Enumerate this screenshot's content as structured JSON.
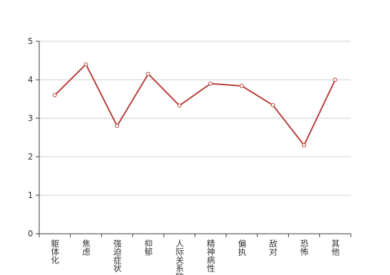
{
  "chart_data": {
    "type": "line",
    "categories": [
      "躯体化",
      "焦虑",
      "强迫症状",
      "抑郁",
      "人际关系敏感",
      "精神病性",
      "偏执",
      "敌对",
      "恐怖",
      "其他"
    ],
    "series": [
      {
        "color": "#b83b37",
        "values": [
          3.6,
          4.4,
          2.8,
          4.15,
          3.33,
          3.9,
          3.84,
          3.34,
          2.3,
          4.0
        ]
      }
    ],
    "ylim": [
      0,
      5
    ],
    "yticks": [
      0,
      1,
      2,
      3,
      4,
      5
    ],
    "grid": true
  }
}
